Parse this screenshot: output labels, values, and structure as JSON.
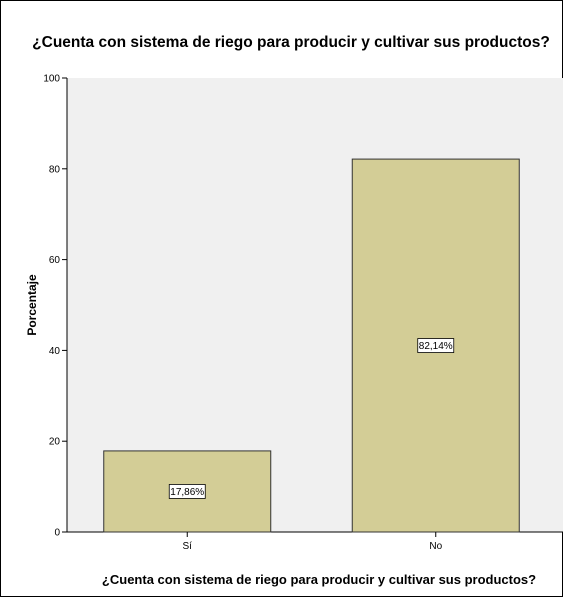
{
  "chart_data": {
    "type": "bar",
    "title": "¿Cuenta con sistema de riego para producir y cultivar sus productos?",
    "xlabel": "¿Cuenta con sistema de riego para producir y cultivar sus productos?",
    "ylabel": "Porcentaje",
    "categories": [
      "Sí",
      "No"
    ],
    "values": [
      17.86,
      82.14
    ],
    "data_labels": [
      "17,86%",
      "82,14%"
    ],
    "ylim": [
      0,
      100
    ],
    "yticks": [
      "0",
      "20",
      "40",
      "60",
      "80",
      "100"
    ],
    "ytick_values": [
      0,
      20,
      40,
      60,
      80,
      100
    ],
    "grid": false,
    "colors": {
      "bar_fill": "#d3cd96",
      "bar_stroke": "#333333",
      "plot_background": "#f0f0f0"
    }
  }
}
